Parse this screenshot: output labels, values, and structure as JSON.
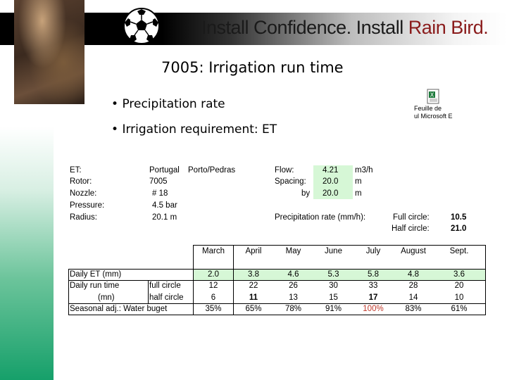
{
  "header": {
    "tagline_a": "Install Confidence.",
    "tagline_b": "Install ",
    "tagline_c": "Rain Bird."
  },
  "slide": {
    "title": "7005: Irrigation run time",
    "bullets": [
      "Precipitation rate",
      "Irrigation requirement: ET"
    ]
  },
  "embedded_file": {
    "caption_line1": "Feuille de",
    "caption_line2": "ul Microsoft E",
    "icon": "excel-icon"
  },
  "params": {
    "et_label": "ET:",
    "et_val1": "Portugal",
    "et_val2": "Porto/Pedras",
    "rotor_label": "Rotor:",
    "rotor_val": "7005",
    "nozzle_label": "Nozzle:",
    "nozzle_val": "# 18",
    "pressure_label": "Pressure:",
    "pressure_val": "4.5 bar",
    "radius_label": "Radius:",
    "radius_val": "20.1 m",
    "flow_label": "Flow:",
    "flow_val": "4.21",
    "flow_unit": "m3/h",
    "spacing_label": "Spacing:",
    "spacing_val": "20.0",
    "spacing_unit": "m",
    "by_label": "by",
    "by_val": "20.0",
    "by_unit": "m",
    "precip_label": "Precipitation rate (mm/h):",
    "full_label": "Full circle:",
    "full_val": "10.5",
    "half_label": "Half circle:",
    "half_val": "21.0"
  },
  "table": {
    "months": [
      "March",
      "April",
      "May",
      "June",
      "July",
      "August",
      "Sept."
    ],
    "daily_et_label": "Daily ET (mm)",
    "daily_et": [
      "2.0",
      "3.8",
      "4.6",
      "5.3",
      "5.8",
      "4.8",
      "3.6"
    ],
    "run_time_label": "Daily run time",
    "mn_label": "(mn)",
    "full_circle_label": "full circle",
    "full_circle": [
      "12",
      "22",
      "26",
      "30",
      "33",
      "28",
      "20"
    ],
    "half_circle_label": "half circle",
    "half_circle": [
      "6",
      "11",
      "13",
      "15",
      "17",
      "14",
      "10"
    ],
    "seasonal_label": "Seasonal adj.: Water buget",
    "seasonal": [
      "35%",
      "65%",
      "78%",
      "91%",
      "100%",
      "83%",
      "61%"
    ]
  },
  "colors": {
    "highlight": "#d6f7d6",
    "accent_green": "#16a06a",
    "emphasis_red": "#c0392b"
  }
}
